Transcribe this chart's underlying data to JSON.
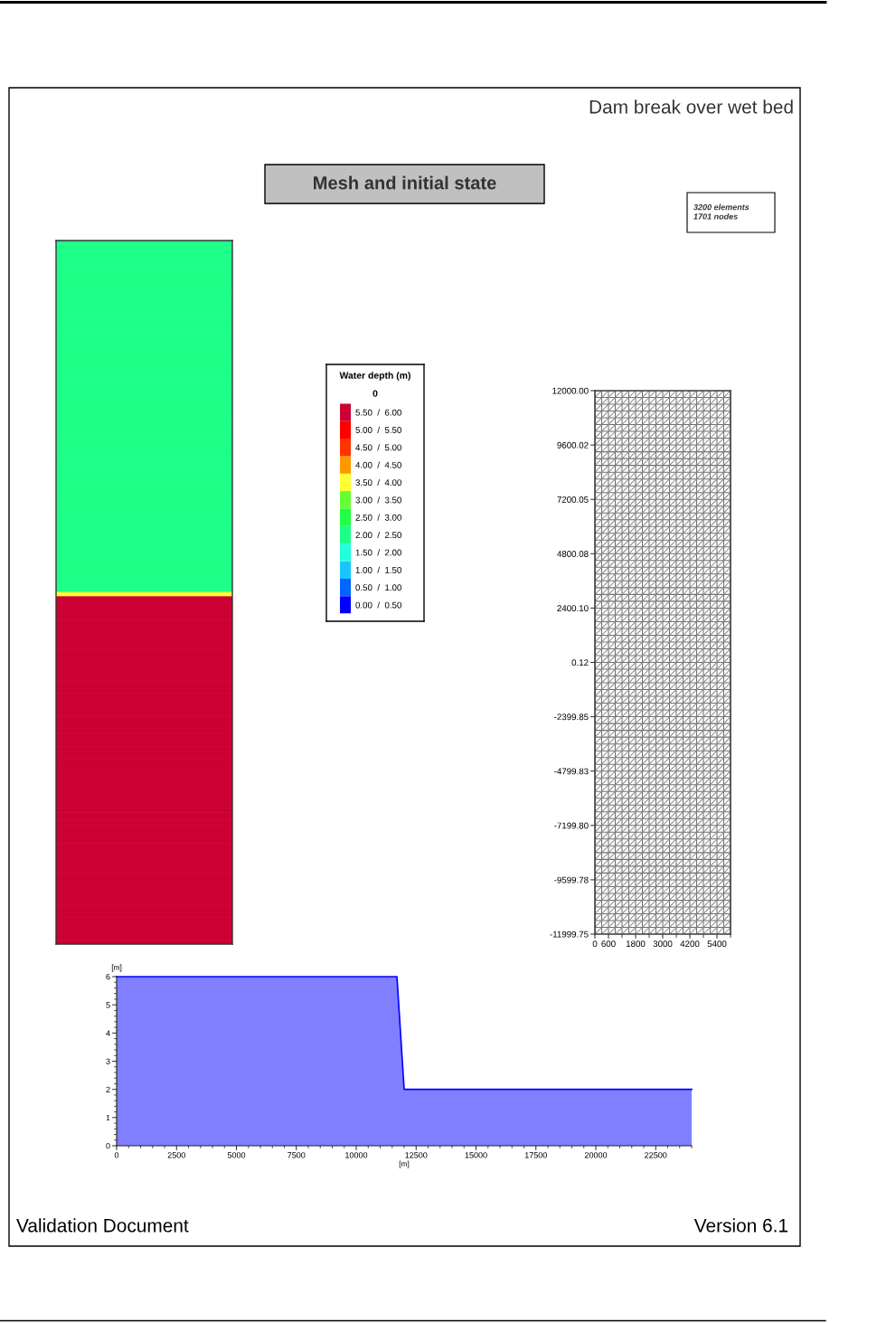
{
  "chart_data": [
    {
      "type": "other",
      "title": "Dam break over wet bed",
      "subtitle": "Mesh and initial state",
      "annotations": [
        "Validation Document",
        "Version 6.1"
      ]
    },
    {
      "type": "heatmap",
      "categories": [
        null
      ],
      "y_categories": [
        null,
        null,
        null,
        null,
        null,
        null,
        null,
        null,
        null,
        null,
        null,
        null,
        null,
        null,
        null,
        null,
        null,
        null,
        null,
        null,
        null,
        null,
        null,
        null,
        null,
        null,
        null,
        null,
        null,
        null,
        null,
        null,
        null,
        null,
        null,
        null,
        null,
        null,
        null,
        null,
        null,
        null,
        null,
        null,
        null,
        null,
        null,
        null,
        null,
        null,
        null,
        null,
        null,
        null,
        null,
        null,
        null,
        null,
        null,
        null,
        null,
        null,
        null,
        null,
        null,
        null,
        null,
        null,
        null,
        null,
        null,
        null,
        null,
        null,
        null,
        null,
        null,
        null,
        null,
        null,
        null,
        null,
        null,
        null,
        null,
        null,
        null,
        null,
        null,
        null,
        null,
        null,
        null,
        null,
        null,
        null,
        null,
        null,
        null,
        null,
        null,
        null,
        null,
        null,
        null,
        null,
        null,
        null,
        null,
        null,
        null,
        null,
        null,
        null,
        null,
        null,
        null,
        null,
        null,
        null,
        null,
        null,
        null,
        null,
        null,
        null,
        null,
        null,
        null,
        null,
        null,
        null,
        null,
        null,
        null,
        null,
        null,
        null,
        null,
        null,
        null,
        null,
        null,
        null,
        null,
        null,
        null,
        null,
        null,
        null,
        null,
        null,
        null,
        null,
        null,
        null,
        null,
        null,
        null,
        null
      ],
      "cells": [
        [
          2
        ],
        [
          2
        ],
        [
          2
        ],
        [
          2
        ],
        [
          2
        ],
        [
          2
        ],
        [
          2
        ],
        [
          2
        ],
        [
          2
        ],
        [
          2
        ],
        [
          2
        ],
        [
          2
        ],
        [
          2
        ],
        [
          2
        ],
        [
          2
        ],
        [
          2
        ],
        [
          2
        ],
        [
          2
        ],
        [
          2
        ],
        [
          2
        ],
        [
          2
        ],
        [
          2
        ],
        [
          2
        ],
        [
          2
        ],
        [
          2
        ],
        [
          2
        ],
        [
          2
        ],
        [
          2
        ],
        [
          2
        ],
        [
          2
        ],
        [
          2
        ],
        [
          2
        ],
        [
          2
        ],
        [
          2
        ],
        [
          2
        ],
        [
          2
        ],
        [
          2
        ],
        [
          2
        ],
        [
          2
        ],
        [
          2
        ],
        [
          2
        ],
        [
          2
        ],
        [
          2
        ],
        [
          2
        ],
        [
          2
        ],
        [
          2
        ],
        [
          2
        ],
        [
          2
        ],
        [
          2
        ],
        [
          2
        ],
        [
          2
        ],
        [
          2
        ],
        [
          2
        ],
        [
          2
        ],
        [
          2
        ],
        [
          2
        ],
        [
          2
        ],
        [
          2
        ],
        [
          2
        ],
        [
          2
        ],
        [
          2
        ],
        [
          2
        ],
        [
          2
        ],
        [
          2
        ],
        [
          2
        ],
        [
          2
        ],
        [
          2
        ],
        [
          2
        ],
        [
          2
        ],
        [
          2
        ],
        [
          2
        ],
        [
          2
        ],
        [
          2
        ],
        [
          2
        ],
        [
          2
        ],
        [
          2
        ],
        [
          2
        ],
        [
          2
        ],
        [
          2
        ],
        [
          2
        ],
        [
          3.75
        ],
        [
          6
        ],
        [
          6
        ],
        [
          6
        ],
        [
          6
        ],
        [
          6
        ],
        [
          6
        ],
        [
          6
        ],
        [
          6
        ],
        [
          6
        ],
        [
          6
        ],
        [
          6
        ],
        [
          6
        ],
        [
          6
        ],
        [
          6
        ],
        [
          6
        ],
        [
          6
        ],
        [
          6
        ],
        [
          6
        ],
        [
          6
        ],
        [
          6
        ],
        [
          6
        ],
        [
          6
        ],
        [
          6
        ],
        [
          6
        ],
        [
          6
        ],
        [
          6
        ],
        [
          6
        ],
        [
          6
        ],
        [
          6
        ],
        [
          6
        ],
        [
          6
        ],
        [
          6
        ],
        [
          6
        ],
        [
          6
        ],
        [
          6
        ],
        [
          6
        ],
        [
          6
        ],
        [
          6
        ],
        [
          6
        ],
        [
          6
        ],
        [
          6
        ],
        [
          6
        ],
        [
          6
        ],
        [
          6
        ],
        [
          6
        ],
        [
          6
        ],
        [
          6
        ],
        [
          6
        ],
        [
          6
        ],
        [
          6
        ],
        [
          6
        ],
        [
          6
        ],
        [
          6
        ],
        [
          6
        ],
        [
          6
        ],
        [
          6
        ],
        [
          6
        ],
        [
          6
        ],
        [
          6
        ],
        [
          6
        ],
        [
          6
        ],
        [
          6
        ],
        [
          6
        ],
        [
          6
        ],
        [
          6
        ],
        [
          6
        ],
        [
          6
        ],
        [
          6
        ],
        [
          6
        ],
        [
          6
        ],
        [
          6
        ],
        [
          6
        ],
        [
          6
        ],
        [
          6
        ],
        [
          6
        ],
        [
          6
        ],
        [
          6
        ],
        [
          6
        ],
        [
          6
        ]
      ],
      "clim": [
        0,
        6
      ],
      "cticks": [
        {
          "value": 5.75,
          "label": "5.50  /  6.00"
        },
        {
          "value": 5.25,
          "label": "5.00  /  5.50"
        },
        {
          "value": 4.75,
          "label": "4.50  /  5.00"
        },
        {
          "value": 4.25,
          "label": "4.00  /  4.50"
        },
        {
          "value": 3.75,
          "label": "3.50  /  4.00"
        },
        {
          "value": 3.25,
          "label": "3.00  /  3.50"
        },
        {
          "value": 2.75,
          "label": "2.50  /  3.00"
        },
        {
          "value": 2.25,
          "label": "2.00  /  2.50"
        },
        {
          "value": 1.75,
          "label": "1.50  /  2.00"
        },
        {
          "value": 1.25,
          "label": "1.00  /  1.50"
        },
        {
          "value": 0.75,
          "label": "0.50  /  1.00"
        },
        {
          "value": 0.25,
          "label": "0.00  /  0.50"
        }
      ],
      "colors": [
        "#cc0033",
        "#ff0000",
        "#ff3300",
        "#ff9900",
        "#ffff33",
        "#66ff33",
        "#22ff44",
        "#1eff88",
        "#22ffdd",
        "#1ac6ff",
        "#0066ff",
        "#0000ff"
      ],
      "clabel": "Water depth (m)",
      "annotations": [
        "0"
      ]
    },
    {
      "type": "line",
      "xlim": [
        0,
        6000
      ],
      "ylim": [
        -11999.75,
        12000.0
      ],
      "xticks": [
        0,
        600,
        {
          "value": 1200,
          "label": null
        },
        1800,
        {
          "value": 2400,
          "label": null
        },
        3000,
        {
          "value": 3600,
          "label": null
        },
        4200,
        {
          "value": 4800,
          "label": null
        },
        5400,
        {
          "value": 6000,
          "label": null
        }
      ],
      "yticks": [
        {
          "value": 12000.0,
          "label": "12000.00"
        },
        9600.02,
        7200.05,
        4800.08,
        {
          "value": 2400.1,
          "label": "2400.10"
        },
        0.12,
        -2399.85,
        -4799.83,
        {
          "value": -7199.8,
          "label": "-7199.80"
        },
        -9599.78,
        -11999.75
      ],
      "series": [
        {
          "color": "#6e6e6e",
          "x": [
            0,
            6000,
            6000,
            0,
            0,
            6000,
            6000,
            0,
            0,
            6000,
            6000,
            0,
            0,
            6000,
            6000,
            0,
            0,
            6000,
            6000,
            0,
            0,
            6000,
            6000,
            0,
            0,
            6000,
            6000,
            0,
            0,
            6000,
            6000,
            0,
            0,
            6000,
            6000,
            0,
            0,
            6000,
            6000,
            0,
            0,
            6000,
            6000,
            0,
            0,
            6000,
            6000,
            0,
            0,
            6000,
            6000,
            0,
            0,
            6000,
            6000,
            0,
            0,
            6000,
            6000,
            0,
            0,
            6000,
            6000,
            0,
            0,
            6000,
            6000,
            0,
            0,
            6000,
            6000,
            0,
            0,
            6000,
            6000,
            0,
            0,
            6000,
            6000,
            0,
            0,
            6000,
            6000,
            0,
            0,
            6000,
            6000,
            0,
            0,
            6000,
            6000,
            0,
            0,
            6000,
            6000,
            0,
            0,
            6000,
            6000,
            0,
            0,
            6000,
            6000,
            0,
            0,
            6000,
            6000,
            0,
            0,
            6000,
            6000,
            0,
            0,
            6000,
            6000,
            0,
            0,
            6000,
            6000,
            0,
            0,
            6000,
            6000,
            0,
            0,
            6000,
            6000,
            0,
            0,
            6000,
            6000,
            0,
            0,
            6000,
            6000,
            0,
            0,
            6000,
            6000,
            0,
            0,
            6000,
            6000,
            0,
            0,
            6000,
            6000,
            0,
            0,
            6000,
            6000,
            0,
            0,
            6000,
            6000,
            0,
            0,
            6000,
            6000,
            0,
            0,
            6000
          ],
          "values": [
            -11999.75,
            -11999.75,
            -11700,
            -11700,
            -11400,
            -11400,
            -11100,
            -11100,
            -10800,
            -10800,
            -10500,
            -10500,
            -10200,
            -10200,
            -9900,
            -9900,
            -9600,
            -9600,
            -9300,
            -9300,
            -9000,
            -9000,
            -8700,
            -8700,
            -8400,
            -8400,
            -8100,
            -8100,
            -7800,
            -7800,
            -7500,
            -7500,
            -7200,
            -7200,
            -6900,
            -6900,
            -6600,
            -6600,
            -6300,
            -6300,
            -6000,
            -6000,
            -5700,
            -5700,
            -5400,
            -5400,
            -5100,
            -5100,
            -4800,
            -4800,
            -4500,
            -4500,
            -4200,
            -4200,
            -3900,
            -3900,
            -3600,
            -3600,
            -3300,
            -3300,
            -3000,
            -3000,
            -2700,
            -2700,
            -2400,
            -2400,
            -2100,
            -2100,
            -1800,
            -1800,
            -1500,
            -1500,
            -1200,
            -1200,
            -900,
            -900,
            -600,
            -600,
            -300,
            -300,
            0,
            0,
            300,
            300,
            600,
            600,
            900,
            900,
            1200,
            1200,
            1500,
            1500,
            1800,
            1800,
            2100,
            2100,
            2400,
            2400,
            2700,
            2700,
            3000,
            3000,
            3300,
            3300,
            3600,
            3600,
            3900,
            3900,
            4200,
            4200,
            4500,
            4500,
            4800,
            4800,
            5100,
            5100,
            5400,
            5400,
            5700,
            5700,
            6000,
            6000,
            6300,
            6300,
            6600,
            6600,
            6900,
            6900,
            7200,
            7200,
            7500,
            7500,
            7800,
            7800,
            8100,
            8100,
            8400,
            8400,
            8700,
            8700,
            9000,
            9000,
            9300,
            9300,
            9600,
            9600,
            9900,
            9900,
            10200,
            10200,
            10500,
            10500,
            10800,
            10800,
            11100,
            11100,
            11400,
            11400,
            11700,
            11700,
            12000,
            12000
          ]
        },
        {
          "color": "#6e6e6e",
          "x": [
            0,
            0,
            300,
            300,
            600,
            600,
            900,
            900,
            1200,
            1200,
            1500,
            1500,
            1800,
            1800,
            2100,
            2100,
            2400,
            2400,
            2700,
            2700,
            3000,
            3000,
            3300,
            3300,
            3600,
            3600,
            3900,
            3900,
            4200,
            4200,
            4500,
            4500,
            4800,
            4800,
            5100,
            5100,
            5400,
            5400,
            5700,
            5700,
            6000,
            6000
          ],
          "values": [
            -11999.75,
            12000,
            12000,
            -11999.75,
            -11999.75,
            12000,
            12000,
            -11999.75,
            -11999.75,
            12000,
            12000,
            -11999.75,
            -11999.75,
            12000,
            12000,
            -11999.75,
            -11999.75,
            12000,
            12000,
            -11999.75,
            -11999.75,
            12000,
            12000,
            -11999.75,
            -11999.75,
            12000,
            12000,
            -11999.75,
            -11999.75,
            12000,
            12000,
            -11999.75,
            -11999.75,
            12000,
            12000,
            -11999.75,
            -11999.75,
            12000,
            12000,
            -11999.75,
            -11999.75,
            12000
          ]
        },
        {
          "color": "#8c8c8c",
          "x": [
            5700,
            6000,
            6000,
            5400,
            5100,
            6000,
            6000,
            4800,
            4500,
            6000,
            6000,
            4200,
            3900,
            6000,
            6000,
            3600,
            3300,
            6000,
            6000,
            3000,
            2700,
            6000,
            6000,
            2400,
            2100,
            6000,
            6000,
            1800,
            1500,
            6000,
            6000,
            1200,
            900,
            6000,
            6000,
            600,
            300,
            6000,
            6000,
            0,
            0,
            6000,
            6000,
            0,
            0,
            6000,
            6000,
            0,
            0,
            6000,
            6000,
            0,
            0,
            6000,
            6000,
            0,
            0,
            6000,
            6000,
            0,
            0,
            6000,
            6000,
            0,
            0,
            6000,
            6000,
            0,
            0,
            6000,
            6000,
            0,
            0,
            6000,
            6000,
            0,
            0,
            6000,
            6000,
            0,
            0,
            6000,
            6000,
            0,
            0,
            6000,
            6000,
            0,
            0,
            6000,
            6000,
            0,
            0,
            6000,
            6000,
            0,
            0,
            6000,
            6000,
            0,
            0,
            6000,
            6000,
            0,
            0,
            6000,
            6000,
            0,
            0,
            6000,
            6000,
            0,
            0,
            6000,
            6000,
            0,
            0,
            6000,
            6000,
            0,
            0,
            6000,
            6000,
            0,
            0,
            6000,
            6000,
            0,
            0,
            6000,
            6000,
            0,
            0,
            6000,
            6000,
            0,
            0,
            6000,
            6000,
            0,
            0,
            6000,
            6000,
            0,
            0,
            6000,
            6000,
            0,
            0,
            6000,
            6000,
            0,
            0,
            6000,
            6000,
            0,
            0,
            6000,
            6000,
            0,
            0,
            5700,
            5400,
            0,
            0,
            5100,
            4800,
            0,
            0,
            4500,
            4200,
            0,
            0,
            3900,
            3600,
            0,
            0,
            3300,
            3000,
            0,
            0,
            2700,
            2400,
            0,
            0,
            2100,
            1800,
            0,
            0,
            1500,
            1200,
            0,
            0,
            900,
            600,
            0,
            0,
            300
          ],
          "values": [
            -11999.75,
            -11700,
            -11400,
            -11999.75,
            -11999.75,
            -11100,
            -10800,
            -11999.75,
            -11999.75,
            -10500,
            -10200,
            -11999.75,
            -11999.75,
            -9900,
            -9600,
            -11999.75,
            -11999.75,
            -9300,
            -9000,
            -11999.75,
            -11999.75,
            -8700,
            -8400,
            -11999.75,
            -11999.75,
            -8100,
            -7800,
            -11999.75,
            -11999.75,
            -7500,
            -7200,
            -11999.75,
            -11999.75,
            -6900,
            -6600,
            -11999.75,
            -11999.75,
            -6300,
            -6000,
            -11999.75,
            -11700,
            -5700,
            -5400,
            -11400,
            -11100,
            -5100,
            -4800,
            -10800,
            -10500,
            -4500,
            -4200,
            -10200,
            -9900,
            -3900,
            -3600,
            -9600,
            -9300,
            -3300,
            -3000,
            -9000,
            -8700,
            -2700,
            -2400,
            -8400,
            -8100,
            -2100,
            -1800,
            -7800,
            -7500,
            -1500,
            -1200,
            -7200,
            -6900,
            -900,
            -600,
            -6600,
            -6300,
            -300,
            0,
            -6000,
            -5700,
            300,
            600,
            -5400,
            -5100,
            900,
            1200,
            -4800,
            -4500,
            1500,
            1800,
            -4200,
            -3900,
            2100,
            2400,
            -3600,
            -3300,
            2700,
            3000,
            -3000,
            -2700,
            3300,
            3600,
            -2400,
            -2100,
            3900,
            4200,
            -1800,
            -1500,
            4500,
            4800,
            -1200,
            -900,
            5100,
            5400,
            -600,
            -300,
            5700,
            6000,
            0,
            300,
            6300,
            6600,
            600,
            900,
            6900,
            7200,
            1200,
            1500,
            7500,
            7800,
            1800,
            2100,
            8100,
            8400,
            2400,
            2700,
            8700,
            9000,
            3000,
            3300,
            9300,
            9600,
            3600,
            3900,
            9900,
            10200,
            4200,
            4500,
            10500,
            10800,
            4800,
            5100,
            11100,
            11400,
            5400,
            5700,
            11700,
            12000,
            6000,
            6300,
            12000,
            12000,
            6600,
            6900,
            12000,
            12000,
            7200,
            7500,
            12000,
            12000,
            7800,
            8100,
            12000,
            12000,
            8400,
            8700,
            12000,
            12000,
            9000,
            9300,
            12000,
            12000,
            9600,
            9900,
            12000,
            12000,
            10200,
            10500,
            12000,
            12000,
            10800,
            11100,
            12000,
            12000,
            11400,
            11700,
            12000
          ]
        }
      ],
      "annotations": [
        "3200 elements\n1701 nodes"
      ]
    },
    {
      "type": "area",
      "x": [
        0,
        11700,
        12000,
        24000
      ],
      "values": [
        6,
        6,
        2,
        2
      ],
      "color": "#0000ff",
      "xlim": [
        0,
        24000
      ],
      "ylim": [
        0,
        6
      ],
      "xticks": [
        0,
        {
          "value": 500,
          "label": null
        },
        {
          "value": 1000,
          "label": null
        },
        {
          "value": 1500,
          "label": null
        },
        {
          "value": 2000,
          "label": null
        },
        2500,
        {
          "value": 3000,
          "label": null
        },
        {
          "value": 3500,
          "label": null
        },
        {
          "value": 4000,
          "label": null
        },
        {
          "value": 4500,
          "label": null
        },
        5000,
        {
          "value": 5500,
          "label": null
        },
        {
          "value": 6000,
          "label": null
        },
        {
          "value": 6500,
          "label": null
        },
        {
          "value": 7000,
          "label": null
        },
        7500,
        {
          "value": 8000,
          "label": null
        },
        {
          "value": 8500,
          "label": null
        },
        {
          "value": 9000,
          "label": null
        },
        {
          "value": 9500,
          "label": null
        },
        10000,
        {
          "value": 10500,
          "label": null
        },
        {
          "value": 11000,
          "label": null
        },
        {
          "value": 11500,
          "label": null
        },
        {
          "value": 12000,
          "label": null
        },
        12500,
        {
          "value": 13000,
          "label": null
        },
        {
          "value": 13500,
          "label": null
        },
        {
          "value": 14000,
          "label": null
        },
        {
          "value": 14500,
          "label": null
        },
        15000,
        {
          "value": 15500,
          "label": null
        },
        {
          "value": 16000,
          "label": null
        },
        {
          "value": 16500,
          "label": null
        },
        {
          "value": 17000,
          "label": null
        },
        17500,
        {
          "value": 18000,
          "label": null
        },
        {
          "value": 18500,
          "label": null
        },
        {
          "value": 19000,
          "label": null
        },
        {
          "value": 19500,
          "label": null
        },
        20000,
        {
          "value": 20500,
          "label": null
        },
        {
          "value": 21000,
          "label": null
        },
        {
          "value": 21500,
          "label": null
        },
        {
          "value": 22000,
          "label": null
        },
        22500,
        {
          "value": 23000,
          "label": null
        },
        {
          "value": 23500,
          "label": null
        },
        {
          "value": 24000,
          "label": null
        }
      ],
      "yticks": [
        0,
        {
          "value": 0.2,
          "label": null
        },
        {
          "value": 0.4,
          "label": null
        },
        {
          "value": 0.6,
          "label": null
        },
        {
          "value": 0.8,
          "label": null
        },
        1,
        {
          "value": 1.2,
          "label": null
        },
        {
          "value": 1.4,
          "label": null
        },
        {
          "value": 1.6,
          "label": null
        },
        {
          "value": 1.8,
          "label": null
        },
        2,
        {
          "value": 2.2,
          "label": null
        },
        {
          "value": 2.4,
          "label": null
        },
        {
          "value": 2.6,
          "label": null
        },
        {
          "value": 2.8,
          "label": null
        },
        3,
        {
          "value": 3.2,
          "label": null
        },
        {
          "value": 3.4,
          "label": null
        },
        {
          "value": 3.6,
          "label": null
        },
        {
          "value": 3.8,
          "label": null
        },
        4,
        {
          "value": 4.2,
          "label": null
        },
        {
          "value": 4.4,
          "label": null
        },
        {
          "value": 4.6,
          "label": null
        },
        {
          "value": 4.8,
          "label": null
        },
        5,
        {
          "value": 5.2,
          "label": null
        },
        {
          "value": 5.4,
          "label": null
        },
        {
          "value": 5.6,
          "label": null
        },
        {
          "value": 5.8,
          "label": null
        },
        6
      ],
      "xlabel": "[m]",
      "ylabel": "[m]"
    }
  ]
}
